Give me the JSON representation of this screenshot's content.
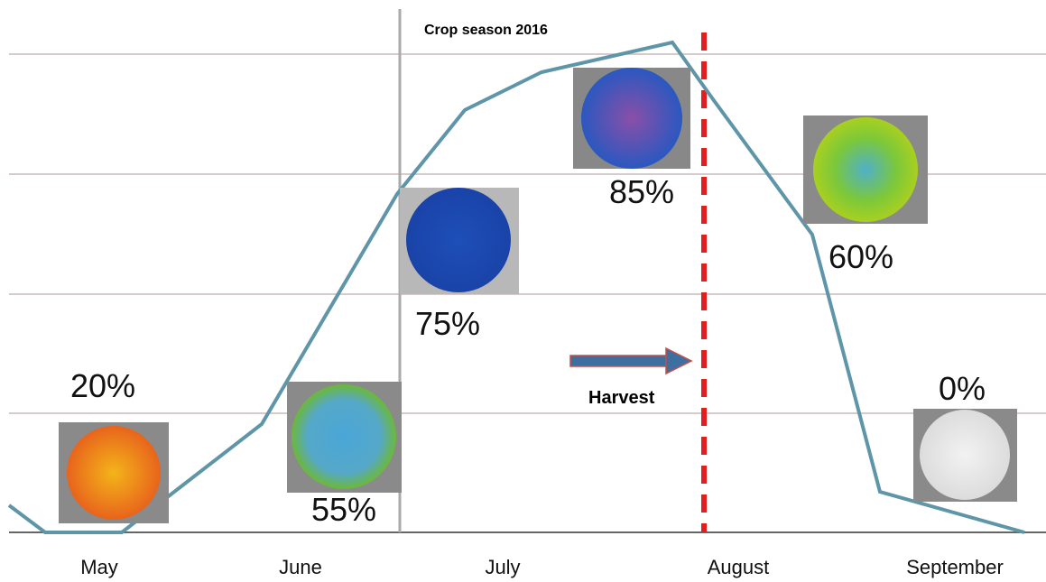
{
  "title": "Crop season 2016",
  "months": [
    "May",
    "June",
    "July",
    "August",
    "September"
  ],
  "samples": [
    {
      "label": "20%"
    },
    {
      "label": "55%"
    },
    {
      "label": "75%"
    },
    {
      "label": "85%"
    },
    {
      "label": "60%"
    },
    {
      "label": "0%"
    }
  ],
  "annotation": "Harvest"
}
